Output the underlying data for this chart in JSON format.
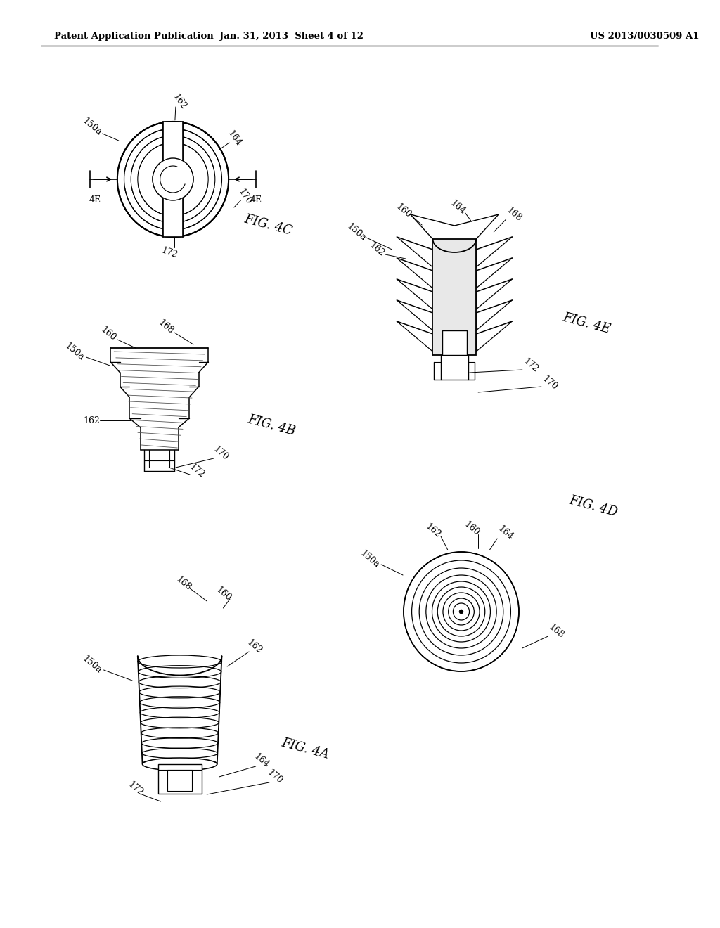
{
  "bg_color": "#ffffff",
  "header_left": "Patent Application Publication",
  "header_middle": "Jan. 31, 2013  Sheet 4 of 12",
  "header_right": "US 2013/0030509 A1"
}
